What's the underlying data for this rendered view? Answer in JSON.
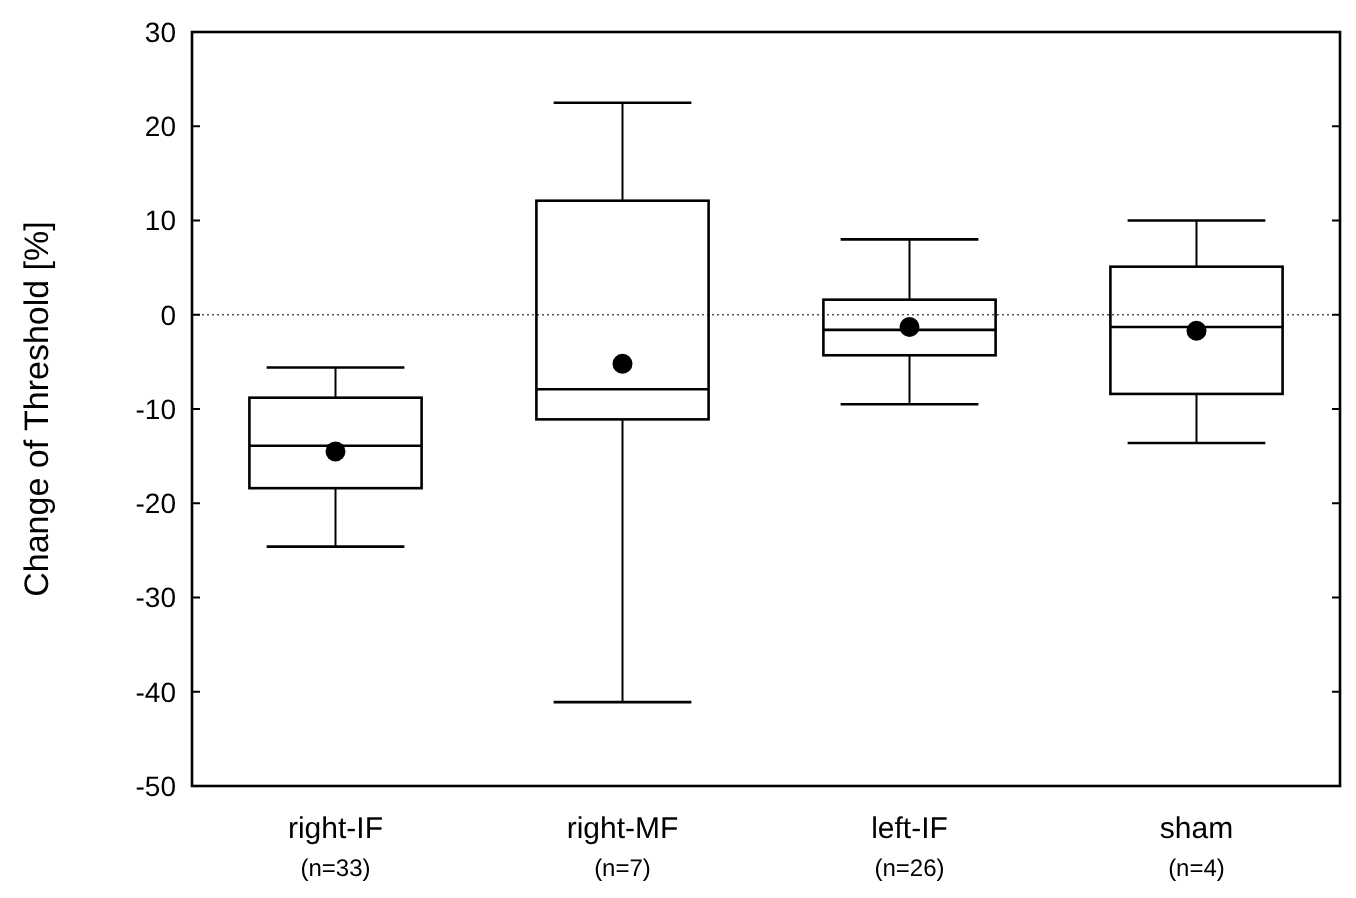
{
  "chart_data": {
    "type": "box",
    "ylabel": "Change of Threshold [%]",
    "categories": [
      "right-IF\n(n=33)",
      "right-MF\n(n=7)",
      "left-IF\n(n=26)",
      "sham\n(n=4)"
    ],
    "boxes": [
      {
        "low": -24.6,
        "q1": -18.4,
        "median": -13.9,
        "q3": -8.8,
        "high": -5.6,
        "mean": -14.5
      },
      {
        "low": -41.1,
        "q1": -11.1,
        "median": -7.9,
        "q3": 12.1,
        "high": 22.5,
        "mean": -5.2
      },
      {
        "low": -9.5,
        "q1": -4.3,
        "median": -1.6,
        "q3": 1.6,
        "high": 8.0,
        "mean": -1.3
      },
      {
        "low": -13.6,
        "q1": -8.4,
        "median": -1.3,
        "q3": 5.1,
        "high": 10.0,
        "mean": -1.7
      }
    ],
    "ylim": [
      -50,
      30
    ],
    "yticks": [
      -50,
      -40,
      -30,
      -20,
      -10,
      0,
      10,
      20,
      30
    ],
    "ref_lines": [
      {
        "axis": "y",
        "value": 0,
        "line_style": "dotted"
      }
    ],
    "grid": false
  }
}
